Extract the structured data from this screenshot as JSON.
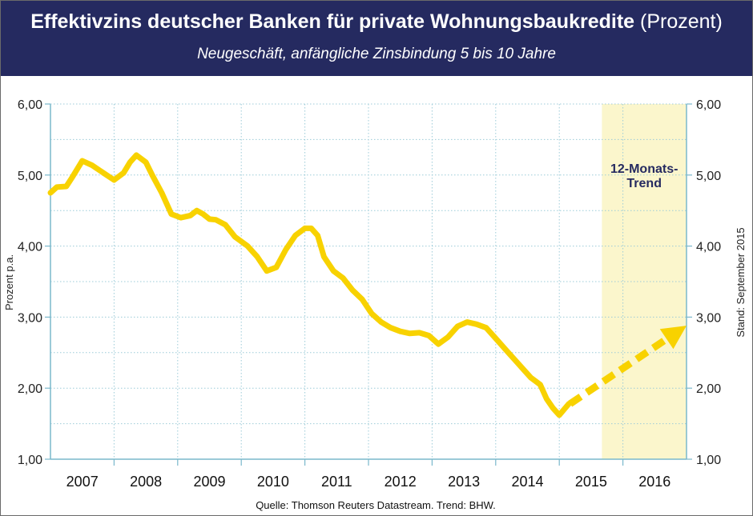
{
  "header": {
    "title": "Effektivzins deutscher Banken für private Wohnungsbaukredite",
    "title_unit": "(Prozent)",
    "subtitle": "Neugeschäft, anfängliche Zinsbindung 5 bis 10 Jahre"
  },
  "footer": {
    "source": "Quelle: Thomson Reuters Datastream. Trend: BHW."
  },
  "colors": {
    "header_bg": "#252a60",
    "line": "#f8d200",
    "trend_band": "#fbf6cc",
    "grid": "#9ccbd8",
    "axis": "#7ab8cc"
  },
  "chart_data": {
    "type": "line",
    "title": "Effektivzins deutscher Banken für private Wohnungsbaukredite (Prozent)",
    "subtitle": "Neugeschäft, anfängliche Zinsbindung 5 bis 10 Jahre",
    "ylabel": "Prozent p.a.",
    "ylabel_right": "Stand: September 2015",
    "ylim": [
      1,
      6
    ],
    "xlim": [
      2007.0,
      2017.0
    ],
    "y_ticks": [
      "1,00",
      "2,00",
      "3,00",
      "4,00",
      "5,00",
      "6,00"
    ],
    "y_tick_values": [
      1,
      2,
      3,
      4,
      5,
      6
    ],
    "x_ticks": [
      "2007",
      "2008",
      "2009",
      "2010",
      "2011",
      "2012",
      "2013",
      "2014",
      "2015",
      "2016"
    ],
    "grid": true,
    "trend_label": [
      "12-Monats-",
      "Trend"
    ],
    "trend_region": [
      2015.67,
      2017.0
    ],
    "series": [
      {
        "values": [
          [
            2007.0,
            4.75
          ],
          [
            2007.1,
            4.83
          ],
          [
            2007.25,
            4.84
          ],
          [
            2007.35,
            4.98
          ],
          [
            2007.5,
            5.2
          ],
          [
            2007.65,
            5.14
          ],
          [
            2007.8,
            5.05
          ],
          [
            2008.0,
            4.93
          ],
          [
            2008.15,
            5.03
          ],
          [
            2008.25,
            5.18
          ],
          [
            2008.35,
            5.28
          ],
          [
            2008.5,
            5.18
          ],
          [
            2008.6,
            5.0
          ],
          [
            2008.75,
            4.75
          ],
          [
            2008.9,
            4.45
          ],
          [
            2009.05,
            4.4
          ],
          [
            2009.2,
            4.43
          ],
          [
            2009.3,
            4.5
          ],
          [
            2009.4,
            4.45
          ],
          [
            2009.5,
            4.38
          ],
          [
            2009.6,
            4.37
          ],
          [
            2009.75,
            4.3
          ],
          [
            2009.9,
            4.13
          ],
          [
            2010.1,
            4.0
          ],
          [
            2010.25,
            3.85
          ],
          [
            2010.4,
            3.65
          ],
          [
            2010.55,
            3.7
          ],
          [
            2010.7,
            3.95
          ],
          [
            2010.85,
            4.15
          ],
          [
            2011.0,
            4.25
          ],
          [
            2011.1,
            4.25
          ],
          [
            2011.2,
            4.15
          ],
          [
            2011.3,
            3.85
          ],
          [
            2011.45,
            3.65
          ],
          [
            2011.6,
            3.55
          ],
          [
            2011.75,
            3.38
          ],
          [
            2011.9,
            3.25
          ],
          [
            2012.05,
            3.05
          ],
          [
            2012.2,
            2.93
          ],
          [
            2012.35,
            2.85
          ],
          [
            2012.5,
            2.8
          ],
          [
            2012.65,
            2.77
          ],
          [
            2012.8,
            2.78
          ],
          [
            2012.95,
            2.74
          ],
          [
            2013.1,
            2.62
          ],
          [
            2013.25,
            2.72
          ],
          [
            2013.4,
            2.87
          ],
          [
            2013.55,
            2.93
          ],
          [
            2013.7,
            2.9
          ],
          [
            2013.85,
            2.85
          ],
          [
            2014.0,
            2.7
          ],
          [
            2014.15,
            2.55
          ],
          [
            2014.3,
            2.4
          ],
          [
            2014.45,
            2.25
          ],
          [
            2014.55,
            2.15
          ],
          [
            2014.7,
            2.05
          ],
          [
            2014.8,
            1.85
          ],
          [
            2014.9,
            1.72
          ],
          [
            2015.0,
            1.62
          ],
          [
            2015.15,
            1.78
          ]
        ]
      },
      {
        "name": "Trend",
        "style": "dashed-arrow",
        "values": [
          [
            2015.17,
            1.78
          ],
          [
            2017.0,
            2.88
          ]
        ]
      }
    ]
  }
}
